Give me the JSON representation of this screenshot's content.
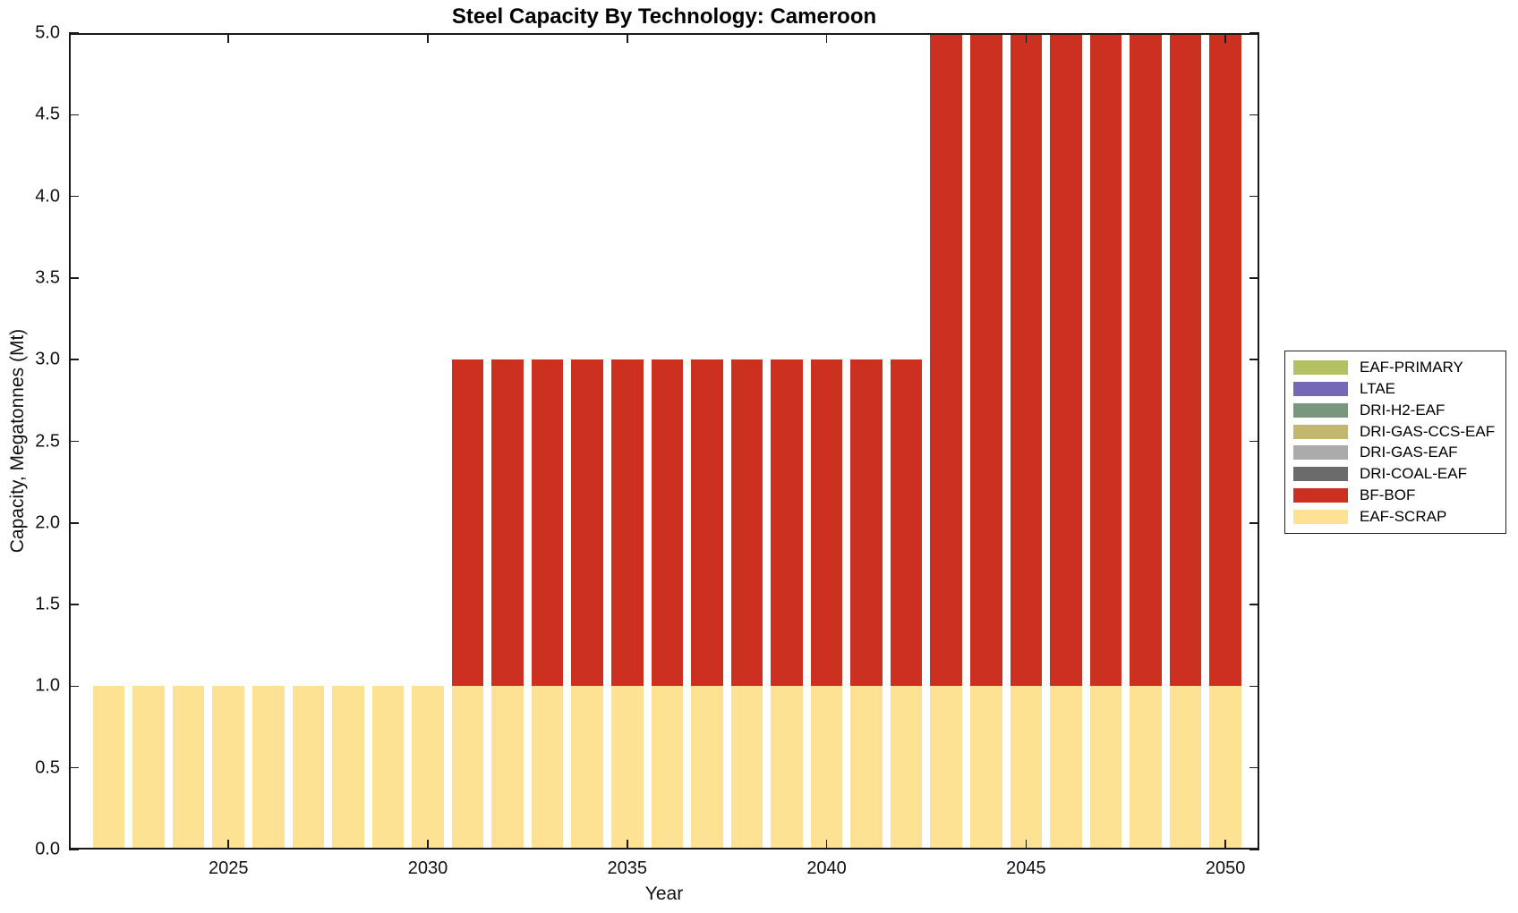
{
  "figure": {
    "title": "Steel Capacity By Technology: Cameroon",
    "xlabel": "Year",
    "ylabel": "Capacity, Megatonnes (Mt)"
  },
  "legend": {
    "items": [
      {
        "label": "EAF-PRIMARY",
        "color": "#B3C063"
      },
      {
        "label": "LTAE",
        "color": "#7568B6"
      },
      {
        "label": "DRI-H2-EAF",
        "color": "#78977D"
      },
      {
        "label": "DRI-GAS-CCS-EAF",
        "color": "#C3B66F"
      },
      {
        "label": "DRI-GAS-EAF",
        "color": "#ABABAB"
      },
      {
        "label": "DRI-COAL-EAF",
        "color": "#6B6B6B"
      },
      {
        "label": "BF-BOF",
        "color": "#CC3021"
      },
      {
        "label": "EAF-SCRAP",
        "color": "#FDE294"
      }
    ]
  },
  "chart_data": {
    "type": "bar",
    "stacked": true,
    "title": "Steel Capacity By Technology: Cameroon",
    "xlabel": "Year",
    "ylabel": "Capacity, Megatonnes (Mt)",
    "x": [
      2022,
      2023,
      2024,
      2025,
      2026,
      2027,
      2028,
      2029,
      2030,
      2031,
      2032,
      2033,
      2034,
      2035,
      2036,
      2037,
      2038,
      2039,
      2040,
      2041,
      2042,
      2043,
      2044,
      2045,
      2046,
      2047,
      2048,
      2049,
      2050
    ],
    "series": [
      {
        "name": "EAF-PRIMARY",
        "color": "#B3C063",
        "values": [
          0,
          0,
          0,
          0,
          0,
          0,
          0,
          0,
          0,
          0,
          0,
          0,
          0,
          0,
          0,
          0,
          0,
          0,
          0,
          0,
          0,
          0,
          0,
          0,
          0,
          0,
          0,
          0,
          0
        ]
      },
      {
        "name": "LTAE",
        "color": "#7568B6",
        "values": [
          0,
          0,
          0,
          0,
          0,
          0,
          0,
          0,
          0,
          0,
          0,
          0,
          0,
          0,
          0,
          0,
          0,
          0,
          0,
          0,
          0,
          0,
          0,
          0,
          0,
          0,
          0,
          0,
          0
        ]
      },
      {
        "name": "DRI-H2-EAF",
        "color": "#78977D",
        "values": [
          0,
          0,
          0,
          0,
          0,
          0,
          0,
          0,
          0,
          0,
          0,
          0,
          0,
          0,
          0,
          0,
          0,
          0,
          0,
          0,
          0,
          0,
          0,
          0,
          0,
          0,
          0,
          0,
          0
        ]
      },
      {
        "name": "DRI-GAS-CCS-EAF",
        "color": "#C3B66F",
        "values": [
          0,
          0,
          0,
          0,
          0,
          0,
          0,
          0,
          0,
          0,
          0,
          0,
          0,
          0,
          0,
          0,
          0,
          0,
          0,
          0,
          0,
          0,
          0,
          0,
          0,
          0,
          0,
          0,
          0
        ]
      },
      {
        "name": "DRI-GAS-EAF",
        "color": "#ABABAB",
        "values": [
          0,
          0,
          0,
          0,
          0,
          0,
          0,
          0,
          0,
          0,
          0,
          0,
          0,
          0,
          0,
          0,
          0,
          0,
          0,
          0,
          0,
          0,
          0,
          0,
          0,
          0,
          0,
          0,
          0
        ]
      },
      {
        "name": "DRI-COAL-EAF",
        "color": "#6B6B6B",
        "values": [
          0,
          0,
          0,
          0,
          0,
          0,
          0,
          0,
          0,
          0,
          0,
          0,
          0,
          0,
          0,
          0,
          0,
          0,
          0,
          0,
          0,
          0,
          0,
          0,
          0,
          0,
          0,
          0,
          0
        ]
      },
      {
        "name": "BF-BOF",
        "color": "#CC3021",
        "values": [
          0,
          0,
          0,
          0,
          0,
          0,
          0,
          0,
          0,
          2,
          2,
          2,
          2,
          2,
          2,
          2,
          2,
          2,
          2,
          2,
          2,
          4,
          4,
          4,
          4,
          4,
          4,
          4,
          4
        ]
      },
      {
        "name": "EAF-SCRAP",
        "color": "#FDE294",
        "values": [
          1,
          1,
          1,
          1,
          1,
          1,
          1,
          1,
          1,
          1,
          1,
          1,
          1,
          1,
          1,
          1,
          1,
          1,
          1,
          1,
          1,
          1,
          1,
          1,
          1,
          1,
          1,
          1,
          1
        ]
      }
    ],
    "stack_order_bottom_to_top": [
      "EAF-SCRAP",
      "BF-BOF",
      "DRI-COAL-EAF",
      "DRI-GAS-EAF",
      "DRI-GAS-CCS-EAF",
      "DRI-H2-EAF",
      "LTAE",
      "EAF-PRIMARY"
    ],
    "xlim": [
      2021.0,
      2050.85
    ],
    "ylim": [
      0,
      5
    ],
    "xticks": [
      2025,
      2030,
      2035,
      2040,
      2045,
      2050
    ],
    "yticks": [
      0.0,
      0.5,
      1.0,
      1.5,
      2.0,
      2.5,
      3.0,
      3.5,
      4.0,
      4.5,
      5.0
    ],
    "grid": false,
    "legend_position": "right-outside",
    "bar_width_years": 0.8
  }
}
